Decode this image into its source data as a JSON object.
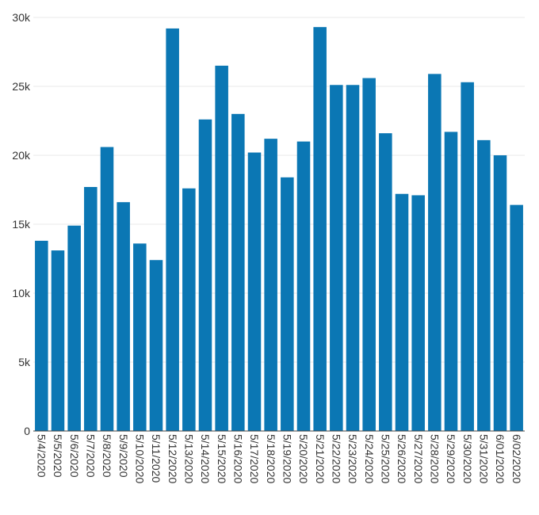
{
  "chart_data": {
    "type": "bar",
    "title": "",
    "xlabel": "",
    "ylabel": "",
    "categories": [
      "5/4/2020",
      "5/5/2020",
      "5/6/2020",
      "5/7/2020",
      "5/8/2020",
      "5/9/2020",
      "5/10/2020",
      "5/11/2020",
      "5/12/2020",
      "5/13/2020",
      "5/14/2020",
      "5/15/2020",
      "5/16/2020",
      "5/17/2020",
      "5/18/2020",
      "5/19/2020",
      "5/20/2020",
      "5/21/2020",
      "5/22/2020",
      "5/23/2020",
      "5/24/2020",
      "5/25/2020",
      "5/26/2020",
      "5/27/2020",
      "5/28/2020",
      "5/29/2020",
      "5/30/2020",
      "5/31/2020",
      "6/01/2020",
      "6/02/2020"
    ],
    "values": [
      13800,
      13100,
      14900,
      17700,
      20600,
      16600,
      13600,
      12400,
      29200,
      17600,
      22600,
      26500,
      23000,
      20200,
      21200,
      18400,
      21000,
      29300,
      25100,
      25100,
      25600,
      21600,
      17200,
      17100,
      25900,
      21700,
      25300,
      21100,
      20000,
      16400
    ],
    "ylim": [
      0,
      30000
    ],
    "y_ticks": [
      0,
      5000,
      10000,
      15000,
      20000,
      25000,
      30000
    ],
    "y_tick_labels": [
      "0",
      "5k",
      "10k",
      "15k",
      "20k",
      "25k",
      "30k"
    ],
    "bar_color": "#0b77b4",
    "grid": true,
    "legend": "none"
  }
}
